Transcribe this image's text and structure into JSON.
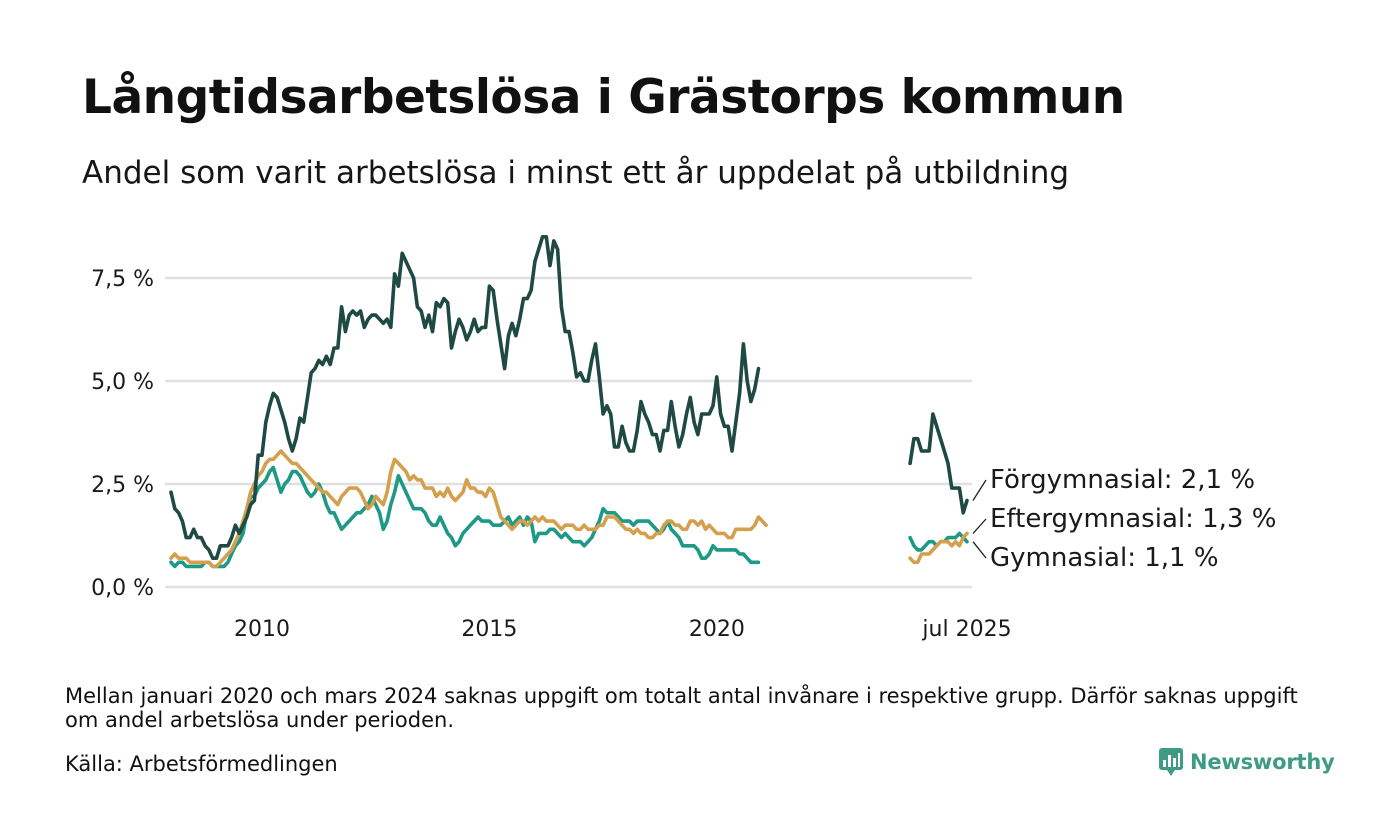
{
  "header": {
    "title": "Långtidsarbetslösa i Grästorps kommun",
    "subtitle": "Andel som varit arbetslösa i minst ett år uppdelat på utbildning"
  },
  "footer": {
    "note": "Mellan januari 2020 och mars 2024 saknas uppgift om totalt antal invånare i respektive grupp. Därför saknas uppgift om andel arbetslösa under perioden.",
    "source": "Källa: Arbetsförmedlingen",
    "brand": "Newsworthy",
    "brand_icon": "newsworthy-logo-icon"
  },
  "chart_data": {
    "type": "line",
    "x_unit": "month",
    "y_unit": "%",
    "ylim": [
      0,
      8.7
    ],
    "y_ticks": [
      {
        "value": 0,
        "label": "0,0 %"
      },
      {
        "value": 2.5,
        "label": "2,5 %"
      },
      {
        "value": 5,
        "label": "5,0 %"
      },
      {
        "value": 7.5,
        "label": "7,5 %"
      }
    ],
    "x_ticks": [
      {
        "value": "2010-01",
        "label": "2010"
      },
      {
        "value": "2015-01",
        "label": "2015"
      },
      {
        "value": "2020-01",
        "label": "2020"
      },
      {
        "value": "2025-07",
        "label": "jul 2025"
      }
    ],
    "grid": "horizontal",
    "legend": "end-of-line labels",
    "series": [
      {
        "name": "Förgymnasial",
        "label": "Förgymnasial: 2,1 %",
        "color": "#1f4a44",
        "segments": [
          {
            "start": "2008-01",
            "values": [
              2.3,
              1.9,
              1.8,
              1.6,
              1.2,
              1.2,
              1.4,
              1.2,
              1.2,
              1.0,
              0.9,
              0.7,
              0.7,
              1.0,
              1.0,
              1.0,
              1.2,
              1.5,
              1.3,
              1.5,
              1.7,
              2.0,
              2.1,
              3.2,
              3.2,
              4.0,
              4.4,
              4.7,
              4.6,
              4.3,
              4.0,
              3.6,
              3.3,
              3.6,
              4.1,
              4.0,
              4.6,
              5.2,
              5.3,
              5.5,
              5.4,
              5.6,
              5.4,
              5.8,
              5.8,
              6.8,
              6.2,
              6.6,
              6.7,
              6.6,
              6.7,
              6.3,
              6.5,
              6.6,
              6.6,
              6.5,
              6.4,
              6.5,
              6.3,
              7.6,
              7.3,
              8.1,
              7.9,
              7.7,
              7.5,
              6.8,
              6.7,
              6.3,
              6.6,
              6.2,
              6.9,
              6.8,
              7.0,
              6.9,
              5.8,
              6.2,
              6.5,
              6.3,
              6.0,
              6.2,
              6.5,
              6.2,
              6.3,
              6.3,
              7.3,
              7.2,
              6.5,
              5.9,
              5.3,
              6.1,
              6.4,
              6.1,
              6.5,
              7.0,
              7.0,
              7.2,
              7.9,
              8.2,
              8.5,
              8.5,
              7.8,
              8.4,
              8.2,
              6.8,
              6.2,
              6.2,
              5.7,
              5.1,
              5.2,
              5.0,
              5.0,
              5.5,
              5.9,
              5.1,
              4.2,
              4.4,
              4.2,
              3.4,
              3.4,
              3.9,
              3.5,
              3.3,
              3.3,
              3.8,
              4.5,
              4.2,
              4.0,
              3.7,
              3.7,
              3.3,
              3.8,
              3.8,
              4.5,
              3.9,
              3.4,
              3.7,
              4.2,
              4.6,
              4.0,
              3.7,
              4.2,
              4.2,
              4.2,
              4.4,
              5.1,
              4.2,
              3.9,
              3.9,
              3.3,
              4.0,
              4.7,
              5.9,
              5.0,
              4.5,
              4.8,
              5.3
            ]
          },
          {
            "start": "2024-04",
            "values": [
              3.0,
              3.6,
              3.6,
              3.3,
              3.3,
              3.3,
              4.2,
              3.9,
              3.6,
              3.3,
              3.0,
              2.4,
              2.4,
              2.4,
              1.8,
              2.1
            ]
          }
        ]
      },
      {
        "name": "Eftergymnasial",
        "label": "Eftergymnasial: 1,3 %",
        "color": "#d4a04d",
        "segments": [
          {
            "start": "2008-01",
            "values": [
              0.7,
              0.8,
              0.7,
              0.7,
              0.7,
              0.6,
              0.6,
              0.6,
              0.6,
              0.6,
              0.6,
              0.5,
              0.5,
              0.6,
              0.7,
              0.8,
              0.9,
              1.1,
              1.3,
              1.6,
              1.9,
              2.3,
              2.5,
              2.7,
              2.8,
              3.0,
              3.1,
              3.1,
              3.2,
              3.3,
              3.2,
              3.1,
              3.0,
              3.0,
              2.9,
              2.8,
              2.7,
              2.6,
              2.5,
              2.4,
              2.3,
              2.3,
              2.2,
              2.1,
              2.0,
              2.2,
              2.3,
              2.4,
              2.4,
              2.4,
              2.3,
              2.1,
              1.9,
              2.0,
              2.2,
              2.1,
              2.0,
              2.3,
              2.8,
              3.1,
              3.0,
              2.9,
              2.8,
              2.6,
              2.7,
              2.6,
              2.6,
              2.4,
              2.4,
              2.4,
              2.2,
              2.3,
              2.2,
              2.4,
              2.2,
              2.1,
              2.2,
              2.3,
              2.6,
              2.4,
              2.4,
              2.3,
              2.3,
              2.2,
              2.4,
              2.3,
              2.0,
              1.7,
              1.6,
              1.5,
              1.4,
              1.5,
              1.6,
              1.6,
              1.5,
              1.6,
              1.7,
              1.6,
              1.7,
              1.6,
              1.6,
              1.6,
              1.5,
              1.4,
              1.5,
              1.5,
              1.5,
              1.4,
              1.4,
              1.5,
              1.4,
              1.4,
              1.4,
              1.5,
              1.5,
              1.7,
              1.7,
              1.7,
              1.6,
              1.5,
              1.4,
              1.4,
              1.3,
              1.4,
              1.3,
              1.3,
              1.2,
              1.2,
              1.3,
              1.3,
              1.5,
              1.6,
              1.6,
              1.5,
              1.5,
              1.4,
              1.4,
              1.6,
              1.6,
              1.5,
              1.6,
              1.4,
              1.5,
              1.4,
              1.3,
              1.3,
              1.3,
              1.2,
              1.2,
              1.4,
              1.4,
              1.4,
              1.4,
              1.4,
              1.5,
              1.7,
              1.6,
              1.5
            ]
          },
          {
            "start": "2024-04",
            "values": [
              0.7,
              0.6,
              0.6,
              0.8,
              0.8,
              0.8,
              0.9,
              1.0,
              1.1,
              1.1,
              1.1,
              1.0,
              1.1,
              1.0,
              1.2,
              1.3
            ]
          }
        ]
      },
      {
        "name": "Gymnasial",
        "label": "Gymnasial: 1,1 %",
        "color": "#1d9985",
        "segments": [
          {
            "start": "2008-01",
            "values": [
              0.6,
              0.5,
              0.6,
              0.6,
              0.5,
              0.5,
              0.5,
              0.5,
              0.5,
              0.6,
              0.6,
              0.5,
              0.5,
              0.5,
              0.5,
              0.6,
              0.8,
              1.0,
              1.1,
              1.3,
              1.8,
              2.2,
              2.2,
              2.4,
              2.5,
              2.6,
              2.8,
              2.9,
              2.6,
              2.3,
              2.5,
              2.6,
              2.8,
              2.8,
              2.7,
              2.5,
              2.3,
              2.2,
              2.3,
              2.5,
              2.3,
              2.0,
              1.8,
              1.8,
              1.6,
              1.4,
              1.5,
              1.6,
              1.7,
              1.8,
              1.8,
              1.9,
              2.0,
              2.2,
              2.0,
              1.8,
              1.4,
              1.6,
              2.0,
              2.3,
              2.7,
              2.5,
              2.3,
              2.1,
              1.9,
              1.9,
              1.9,
              1.8,
              1.6,
              1.5,
              1.5,
              1.7,
              1.5,
              1.3,
              1.2,
              1.0,
              1.1,
              1.3,
              1.4,
              1.5,
              1.6,
              1.7,
              1.6,
              1.6,
              1.6,
              1.5,
              1.5,
              1.5,
              1.6,
              1.7,
              1.5,
              1.6,
              1.7,
              1.5,
              1.7,
              1.6,
              1.1,
              1.3,
              1.3,
              1.3,
              1.4,
              1.4,
              1.3,
              1.2,
              1.3,
              1.2,
              1.1,
              1.1,
              1.1,
              1.0,
              1.1,
              1.2,
              1.4,
              1.6,
              1.9,
              1.8,
              1.8,
              1.8,
              1.7,
              1.6,
              1.6,
              1.6,
              1.5,
              1.6,
              1.6,
              1.6,
              1.6,
              1.5,
              1.4,
              1.3,
              1.4,
              1.6,
              1.4,
              1.3,
              1.2,
              1.0,
              1.0,
              1.0,
              1.0,
              0.9,
              0.7,
              0.7,
              0.8,
              1.0,
              0.9,
              0.9,
              0.9,
              0.9,
              0.9,
              0.9,
              0.8,
              0.8,
              0.7,
              0.6,
              0.6,
              0.6
            ]
          },
          {
            "start": "2024-04",
            "values": [
              1.2,
              1.0,
              0.9,
              0.9,
              1.0,
              1.1,
              1.1,
              1.0,
              1.1,
              1.1,
              1.2,
              1.2,
              1.2,
              1.3,
              1.2,
              1.1
            ]
          }
        ]
      }
    ]
  }
}
